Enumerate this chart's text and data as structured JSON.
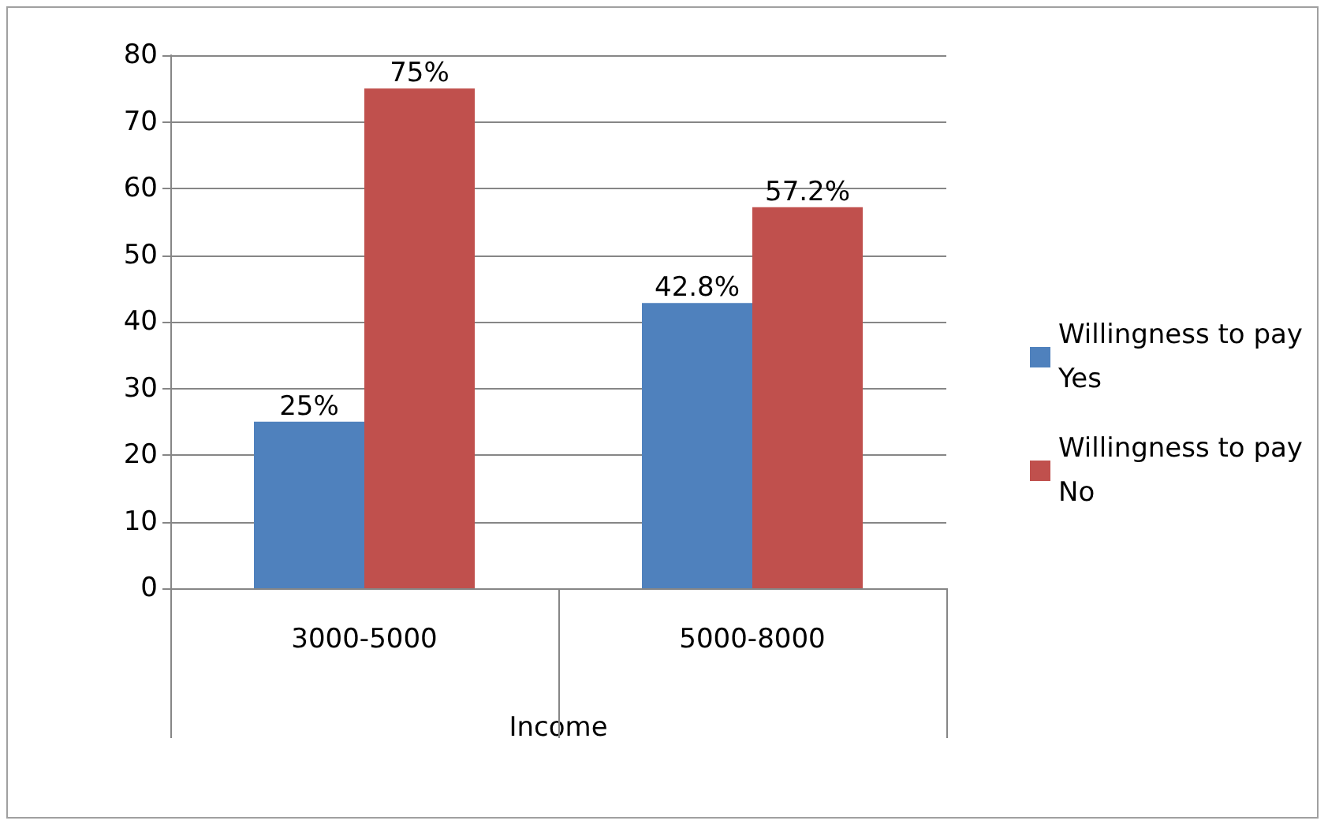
{
  "chart_data": {
    "type": "bar",
    "xlabel": "Income",
    "categories": [
      "3000-5000",
      "5000-8000"
    ],
    "series": [
      {
        "name": "Willingness to pay Yes",
        "color": "#4f81bd",
        "values": [
          25,
          42.8
        ],
        "value_labels": [
          "25%",
          "42.8%"
        ]
      },
      {
        "name": "Willingness to pay No",
        "color": "#c0504d",
        "values": [
          75,
          57.2
        ],
        "value_labels": [
          "75%",
          "57.2%"
        ]
      }
    ],
    "ylim": [
      0,
      80
    ],
    "yticks": [
      0,
      10,
      20,
      30,
      40,
      50,
      60,
      70,
      80
    ],
    "grid": "y",
    "legend": "right"
  }
}
